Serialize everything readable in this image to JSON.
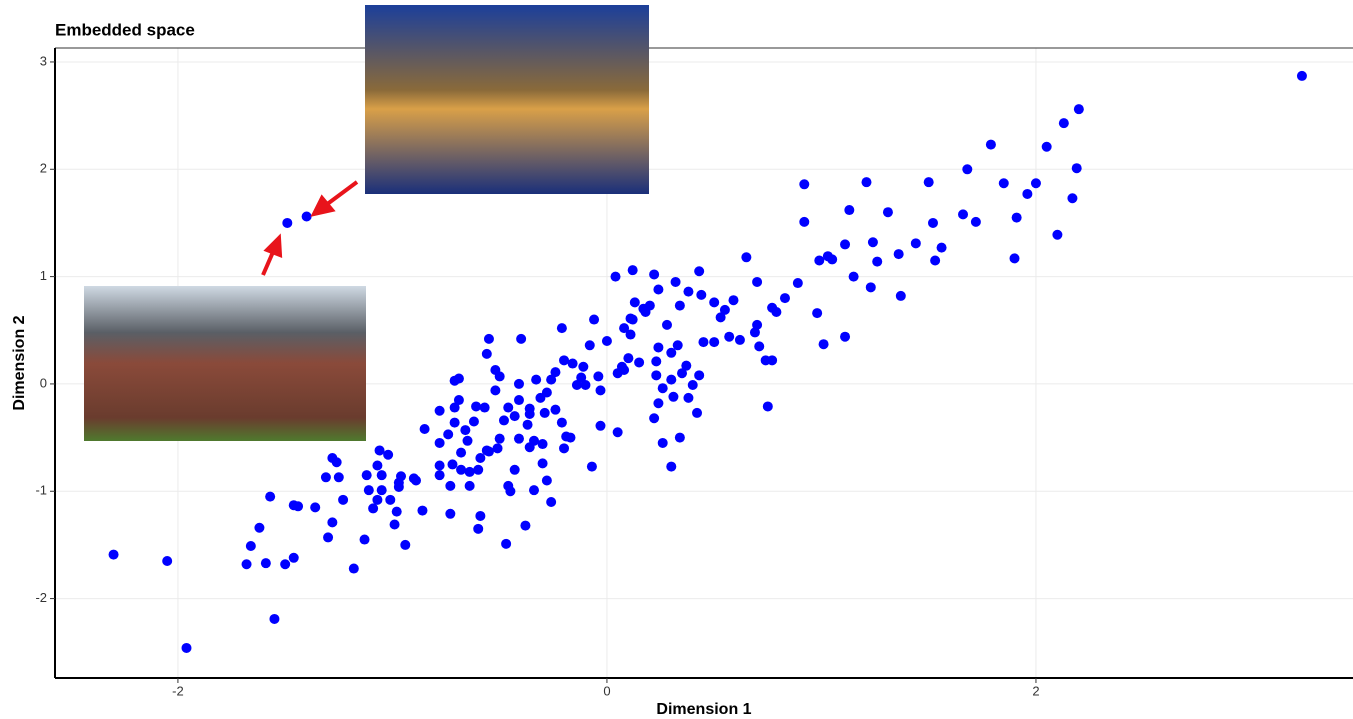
{
  "chart_data": {
    "type": "scatter",
    "title": "Embedded space",
    "x_label": "Dimension 1",
    "y_label": "Dimension 2",
    "color": "#0000ff",
    "grid": true,
    "xlim": [
      -2.573,
      3.478
    ],
    "ylim": [
      -2.74,
      3.13
    ],
    "xticks": [
      -2,
      0,
      2
    ],
    "yticks": [
      -2,
      -1,
      0,
      1,
      2,
      3
    ],
    "x": [
      3.24,
      2.2,
      2.13,
      2.05,
      2.19,
      1.79,
      1.68,
      1.85,
      2.0,
      1.96,
      2.17,
      1.91,
      1.72,
      1.66,
      2.1,
      1.9,
      1.5,
      1.52,
      1.56,
      1.53,
      1.44,
      1.36,
      1.37,
      1.31,
      1.21,
      1.13,
      1.24,
      1.26,
      1.23,
      1.15,
      1.11,
      0.92,
      0.92,
      0.99,
      1.05,
      1.03,
      0.98,
      1.01,
      1.11,
      0.89,
      0.83,
      0.79,
      0.77,
      0.7,
      0.65,
      0.59,
      0.55,
      0.53,
      0.5,
      0.44,
      0.43,
      0.38,
      0.32,
      0.34,
      0.28,
      0.33,
      0.45,
      0.5,
      0.57,
      0.62,
      0.69,
      0.7,
      0.71,
      0.74,
      0.77,
      0.75,
      0.43,
      0.37,
      0.35,
      0.4,
      0.38,
      0.42,
      0.3,
      0.31,
      0.3,
      0.24,
      0.23,
      0.26,
      0.24,
      0.22,
      0.26,
      0.34,
      0.3,
      0.23,
      0.12,
      0.22,
      0.04,
      0.24,
      0.13,
      0.2,
      0.18,
      0.12,
      0.11,
      0.08,
      0.11,
      0.15,
      0.07,
      0.05,
      0.08,
      0.1,
      0.17,
      0.0,
      -0.06,
      -0.08,
      -0.04,
      -0.03,
      -0.03,
      0.05,
      -0.07,
      -0.1,
      -0.21,
      -0.2,
      -0.16,
      -0.11,
      -0.12,
      -0.14,
      -0.24,
      -0.26,
      -0.28,
      -0.33,
      -0.31,
      -0.24,
      -0.29,
      -0.36,
      -0.36,
      -0.37,
      -0.34,
      -0.21,
      -0.19,
      -0.17,
      -0.2,
      -0.3,
      -0.3,
      -0.28,
      -0.34,
      -0.26,
      -0.38,
      -0.47,
      -0.46,
      -0.45,
      -0.43,
      -0.36,
      -0.41,
      -0.43,
      -0.41,
      -0.46,
      -0.48,
      -0.41,
      -0.4,
      -0.5,
      -0.52,
      -0.52,
      -0.55,
      -0.56,
      -0.57,
      -0.61,
      -0.62,
      -0.56,
      -0.55,
      -0.51,
      -0.5,
      -0.59,
      -0.65,
      -0.66,
      -0.68,
      -0.64,
      -0.6,
      -0.68,
      -0.64,
      -0.72,
      -0.69,
      -0.71,
      -0.69,
      -0.71,
      -0.71,
      -0.74,
      -0.78,
      -0.78,
      -0.78,
      -0.78,
      -0.73,
      -0.73,
      -0.59,
      -0.6,
      -0.85,
      -0.89,
      -0.86,
      -0.9,
      -0.96,
      -0.97,
      -0.97,
      -1.01,
      -0.98,
      -0.94,
      -0.99,
      -1.05,
      -1.02,
      -1.06,
      -1.07,
      -1.05,
      -1.09,
      -1.11,
      -1.07,
      -1.12,
      -1.13,
      -1.18,
      -1.23,
      -1.25,
      -1.26,
      -1.28,
      -1.31,
      -1.28,
      -1.3,
      -1.36,
      -1.44,
      -1.46,
      -1.46,
      -1.5,
      -1.55,
      -1.59,
      -1.68,
      -1.57,
      -1.62,
      -1.66,
      -2.05,
      -2.3,
      -1.96,
      -1.49,
      -1.4
    ],
    "values": [
      2.87,
      2.56,
      2.43,
      2.21,
      2.01,
      2.23,
      2.0,
      1.87,
      1.87,
      1.77,
      1.73,
      1.55,
      1.51,
      1.58,
      1.39,
      1.17,
      1.88,
      1.5,
      1.27,
      1.15,
      1.31,
      1.21,
      0.82,
      1.6,
      1.88,
      1.62,
      1.32,
      1.14,
      0.9,
      1.0,
      1.3,
      1.86,
      1.51,
      1.15,
      1.16,
      1.19,
      0.66,
      0.37,
      0.44,
      0.94,
      0.8,
      0.67,
      0.71,
      0.95,
      1.18,
      0.78,
      0.69,
      0.62,
      0.76,
      0.83,
      1.05,
      0.86,
      0.95,
      0.73,
      0.55,
      0.36,
      0.39,
      0.39,
      0.44,
      0.41,
      0.48,
      0.55,
      0.35,
      0.22,
      0.22,
      -0.21,
      0.08,
      0.17,
      0.1,
      -0.01,
      -0.13,
      -0.27,
      0.04,
      -0.12,
      0.29,
      0.34,
      0.21,
      -0.04,
      -0.18,
      -0.32,
      -0.55,
      -0.5,
      -0.77,
      0.08,
      1.06,
      1.02,
      1.0,
      0.88,
      0.76,
      0.73,
      0.67,
      0.6,
      0.61,
      0.52,
      0.46,
      0.2,
      0.16,
      0.1,
      0.13,
      0.24,
      0.7,
      0.4,
      0.6,
      0.36,
      0.07,
      -0.06,
      -0.39,
      -0.45,
      -0.77,
      -0.01,
      0.52,
      0.22,
      0.19,
      0.16,
      0.06,
      -0.01,
      0.11,
      0.04,
      -0.08,
      0.04,
      -0.13,
      -0.24,
      -0.27,
      -0.28,
      -0.23,
      -0.38,
      -0.53,
      -0.36,
      -0.49,
      -0.5,
      -0.6,
      -0.56,
      -0.74,
      -0.9,
      -0.99,
      -1.1,
      -1.32,
      -1.49,
      -0.95,
      -1.0,
      -0.8,
      -0.59,
      -0.51,
      -0.3,
      -0.15,
      -0.22,
      -0.34,
      0.0,
      0.42,
      0.07,
      0.13,
      -0.06,
      0.42,
      0.28,
      -0.22,
      -0.21,
      -0.35,
      -0.62,
      -0.63,
      -0.6,
      -0.51,
      -0.69,
      -0.53,
      -0.43,
      -0.64,
      -0.82,
      -0.8,
      -0.8,
      -0.95,
      -0.75,
      0.05,
      0.03,
      -0.15,
      -0.22,
      -0.36,
      -0.47,
      -0.25,
      -0.55,
      -0.76,
      -0.85,
      -0.95,
      -1.21,
      -1.23,
      -1.35,
      -0.42,
      -0.9,
      -1.18,
      -0.88,
      -0.86,
      -0.96,
      -0.92,
      -1.08,
      -1.19,
      -1.5,
      -1.31,
      -0.85,
      -0.66,
      -0.62,
      -0.76,
      -0.99,
      -1.16,
      -0.99,
      -1.08,
      -0.85,
      -1.45,
      -1.72,
      -1.08,
      -0.87,
      -0.73,
      -0.69,
      -0.87,
      -1.29,
      -1.43,
      -1.15,
      -1.14,
      -1.13,
      -1.62,
      -1.68,
      -2.19,
      -1.67,
      -1.68,
      -1.05,
      -1.34,
      -1.51,
      -1.65,
      -1.59,
      -2.46,
      1.5,
      1.56
    ]
  }
}
